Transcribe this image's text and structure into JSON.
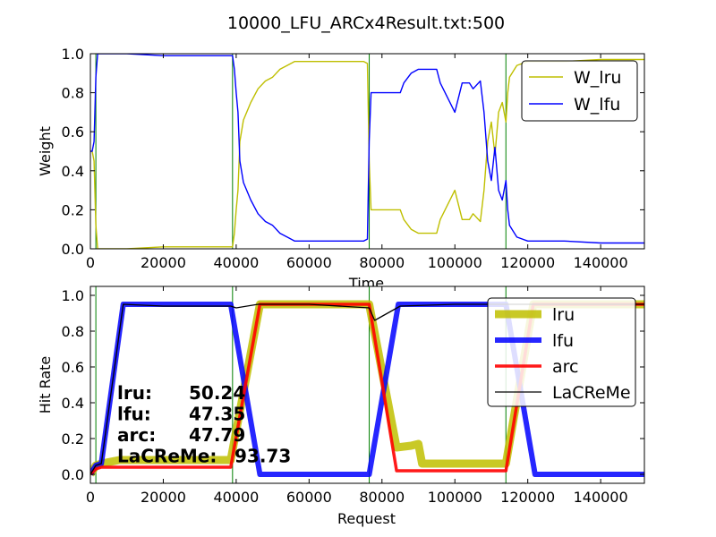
{
  "figure_title": "10000_LFU_ARCx4Result.txt:500",
  "colors": {
    "lru": "#bfbf00",
    "lfu": "#0000ff",
    "arc": "#ff0000",
    "lacreme": "#000000",
    "vline": "#008000",
    "frame": "#000000",
    "legend_border": "#000000"
  },
  "chart_data": [
    {
      "type": "line",
      "title": "10000_LFU_ARCx4Result.txt:500",
      "xlabel": "Time",
      "ylabel": "Weight",
      "xlim": [
        0,
        152000
      ],
      "ylim": [
        0,
        1.0
      ],
      "xticks": [
        "0",
        "20000",
        "40000",
        "60000",
        "80000",
        "100000",
        "120000",
        "140000"
      ],
      "yticks": [
        "0.0",
        "0.2",
        "0.4",
        "0.6",
        "0.8",
        "1.0"
      ],
      "grid": false,
      "legend_position": "top-right",
      "vlines": [
        1500,
        39000,
        76500,
        114000
      ],
      "series": [
        {
          "name": "W_lru",
          "x": [
            0,
            500,
            1000,
            1500,
            2000,
            2500,
            3000,
            5000,
            10000,
            20000,
            30000,
            38000,
            39000,
            39500,
            40000,
            40500,
            41000,
            42000,
            44000,
            46000,
            48000,
            50000,
            52000,
            54000,
            56000,
            60000,
            70000,
            75000,
            76000,
            76500,
            77000,
            78000,
            80000,
            85000,
            86000,
            88000,
            90000,
            95000,
            96000,
            100000,
            102000,
            104000,
            105000,
            107000,
            108000,
            109000,
            110000,
            111000,
            112000,
            113000,
            114000,
            114500,
            115000,
            117000,
            120000,
            130000,
            140000,
            150000,
            152000
          ],
          "y": [
            0.5,
            0.5,
            0.45,
            0.12,
            0.0,
            0.0,
            0.0,
            0.0,
            0.0,
            0.01,
            0.01,
            0.01,
            0.01,
            0.08,
            0.2,
            0.3,
            0.55,
            0.66,
            0.75,
            0.82,
            0.86,
            0.88,
            0.92,
            0.94,
            0.96,
            0.96,
            0.96,
            0.96,
            0.95,
            0.45,
            0.2,
            0.2,
            0.2,
            0.2,
            0.15,
            0.1,
            0.08,
            0.08,
            0.15,
            0.3,
            0.15,
            0.15,
            0.18,
            0.14,
            0.3,
            0.55,
            0.65,
            0.48,
            0.7,
            0.75,
            0.65,
            0.8,
            0.88,
            0.94,
            0.96,
            0.96,
            0.97,
            0.97,
            0.97
          ]
        },
        {
          "name": "W_lfu",
          "x": [
            0,
            500,
            1000,
            1500,
            2000,
            2500,
            3000,
            5000,
            10000,
            20000,
            30000,
            38000,
            39000,
            39500,
            40000,
            40500,
            41000,
            42000,
            44000,
            46000,
            48000,
            50000,
            52000,
            54000,
            56000,
            60000,
            70000,
            75000,
            76000,
            76500,
            77000,
            78000,
            80000,
            85000,
            86000,
            88000,
            90000,
            95000,
            96000,
            100000,
            102000,
            104000,
            105000,
            107000,
            108000,
            109000,
            110000,
            111000,
            112000,
            113000,
            114000,
            114500,
            115000,
            117000,
            120000,
            130000,
            140000,
            150000,
            152000
          ],
          "y": [
            0.5,
            0.5,
            0.55,
            0.88,
            1.0,
            1.0,
            1.0,
            1.0,
            1.0,
            0.99,
            0.99,
            0.99,
            0.99,
            0.92,
            0.8,
            0.7,
            0.45,
            0.34,
            0.25,
            0.18,
            0.14,
            0.12,
            0.08,
            0.06,
            0.04,
            0.04,
            0.04,
            0.04,
            0.05,
            0.55,
            0.8,
            0.8,
            0.8,
            0.8,
            0.85,
            0.9,
            0.92,
            0.92,
            0.85,
            0.7,
            0.85,
            0.85,
            0.82,
            0.86,
            0.7,
            0.45,
            0.35,
            0.52,
            0.3,
            0.25,
            0.35,
            0.2,
            0.12,
            0.06,
            0.04,
            0.04,
            0.03,
            0.03,
            0.03
          ]
        }
      ]
    },
    {
      "type": "line",
      "title": "",
      "xlabel": "Request",
      "ylabel": "Hit Rate",
      "xlim": [
        0,
        152000
      ],
      "ylim": [
        -0.05,
        1.05
      ],
      "xticks": [
        "0",
        "20000",
        "40000",
        "60000",
        "80000",
        "100000",
        "120000",
        "140000"
      ],
      "yticks": [
        "0.0",
        "0.2",
        "0.4",
        "0.6",
        "0.8",
        "1.0"
      ],
      "grid": false,
      "legend_position": "top-right",
      "vlines": [
        1500,
        39000,
        76500,
        114000
      ],
      "series": [
        {
          "name": "lru",
          "x": [
            0,
            1500,
            3000,
            8000,
            15000,
            30000,
            38500,
            46500,
            60000,
            76500,
            84000,
            88000,
            90000,
            91000,
            100000,
            114000,
            121500,
            140000,
            152000
          ],
          "y": [
            0.0,
            0.05,
            0.06,
            0.08,
            0.08,
            0.08,
            0.08,
            0.95,
            0.95,
            0.95,
            0.15,
            0.16,
            0.17,
            0.06,
            0.06,
            0.06,
            0.95,
            0.95,
            0.95
          ]
        },
        {
          "name": "lfu",
          "x": [
            0,
            1500,
            3000,
            9000,
            20000,
            38500,
            46500,
            60000,
            76500,
            84500,
            100000,
            114000,
            122000,
            140000,
            152000
          ],
          "y": [
            0.0,
            0.05,
            0.06,
            0.95,
            0.95,
            0.95,
            0.0,
            0.0,
            0.0,
            0.95,
            0.95,
            0.95,
            0.0,
            0.0,
            0.0
          ]
        },
        {
          "name": "arc",
          "x": [
            0,
            1500,
            3000,
            8000,
            20000,
            38500,
            46500,
            60000,
            76500,
            84000,
            100000,
            114000,
            121500,
            140000,
            152000
          ],
          "y": [
            0.0,
            0.03,
            0.04,
            0.04,
            0.04,
            0.04,
            0.95,
            0.95,
            0.95,
            0.02,
            0.02,
            0.02,
            0.95,
            0.95,
            0.95
          ]
        },
        {
          "name": "LaCReMe",
          "x": [
            0,
            1500,
            3000,
            9000,
            20000,
            38500,
            40000,
            46000,
            60000,
            76500,
            78000,
            85000,
            100000,
            114000,
            116000,
            122000,
            140000,
            152000
          ],
          "y": [
            0.0,
            0.05,
            0.06,
            0.95,
            0.94,
            0.94,
            0.93,
            0.95,
            0.95,
            0.93,
            0.86,
            0.94,
            0.95,
            0.95,
            0.95,
            0.95,
            0.95,
            0.95
          ]
        }
      ],
      "annotations": [
        {
          "label": "lru:",
          "value": "50.24"
        },
        {
          "label": "lfu:",
          "value": "47.35"
        },
        {
          "label": "arc:",
          "value": "47.79"
        },
        {
          "label": "LaCReMe:",
          "value": "93.73"
        }
      ]
    }
  ]
}
